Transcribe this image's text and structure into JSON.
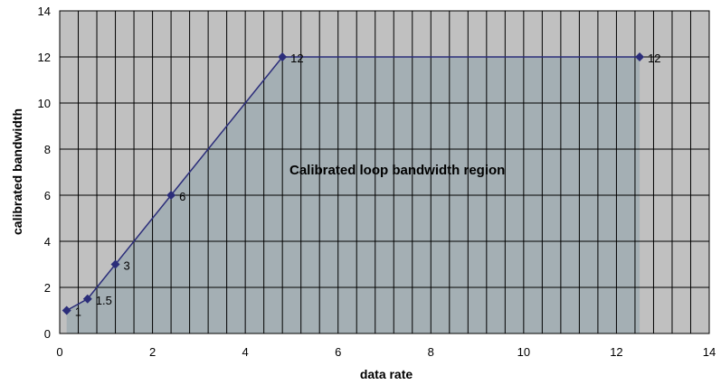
{
  "chart_data": {
    "type": "line",
    "xlabel": "data rate",
    "ylabel": "calibrated bandwidth",
    "xlim": [
      0,
      14
    ],
    "ylim": [
      0,
      14
    ],
    "xticks": [
      "0",
      "2",
      "4",
      "6",
      "8",
      "10",
      "12",
      "14"
    ],
    "yticks": [
      "0",
      "2",
      "4",
      "6",
      "8",
      "10",
      "12",
      "14"
    ],
    "grid": true,
    "series": [
      {
        "points": [
          {
            "x": 0.15,
            "y": 1,
            "label": "1"
          },
          {
            "x": 0.6,
            "y": 1.5,
            "label": "1.5"
          },
          {
            "x": 1.2,
            "y": 3,
            "label": "3"
          },
          {
            "x": 2.4,
            "y": 6,
            "label": "6"
          },
          {
            "x": 4.8,
            "y": 12,
            "label": "12"
          },
          {
            "x": 12.5,
            "y": 12,
            "label": "12"
          }
        ],
        "color": "#2b2d7a"
      }
    ],
    "shaded_region_label": "Calibrated loop bandwidth region",
    "colors": {
      "plot_background": "#c0c0c0",
      "region_fill": "#9fabb1",
      "grid": "#000000",
      "line": "#2b2d7a"
    }
  }
}
